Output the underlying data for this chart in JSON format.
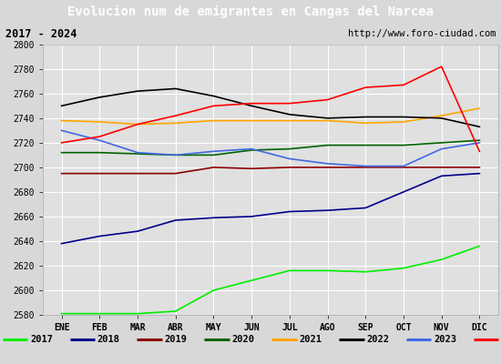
{
  "title": "Evolucion num de emigrantes en Cangas del Narcea",
  "subtitle_left": "2017 - 2024",
  "subtitle_right": "http://www.foro-ciudad.com",
  "months": [
    "ENE",
    "FEB",
    "MAR",
    "ABR",
    "MAY",
    "JUN",
    "JUL",
    "AGO",
    "SEP",
    "OCT",
    "NOV",
    "DIC"
  ],
  "ylim": [
    2580,
    2800
  ],
  "yticks": [
    2580,
    2600,
    2620,
    2640,
    2660,
    2680,
    2700,
    2720,
    2740,
    2760,
    2780,
    2800
  ],
  "series": {
    "2017": {
      "color": "#00ee00",
      "linewidth": 1.2,
      "data": [
        2581,
        2581,
        2581,
        2583,
        2600,
        2608,
        2616,
        2616,
        2615,
        2618,
        2625,
        2636
      ]
    },
    "2018": {
      "color": "#00008b",
      "linewidth": 1.2,
      "data": [
        2638,
        2644,
        2648,
        2657,
        2659,
        2660,
        2664,
        2665,
        2667,
        2680,
        2693,
        2695
      ]
    },
    "2019": {
      "color": "#8b0000",
      "linewidth": 1.2,
      "data": [
        2695,
        2695,
        2695,
        2695,
        2700,
        2699,
        2700,
        2700,
        2700,
        2700,
        2700,
        2700
      ]
    },
    "2020": {
      "color": "#006400",
      "linewidth": 1.2,
      "data": [
        2712,
        2712,
        2711,
        2710,
        2710,
        2714,
        2715,
        2718,
        2718,
        2718,
        2720,
        2722
      ]
    },
    "2021": {
      "color": "#ffa500",
      "linewidth": 1.2,
      "data": [
        2738,
        2737,
        2735,
        2736,
        2738,
        2738,
        2738,
        2738,
        2736,
        2737,
        2742,
        2748
      ]
    },
    "2022": {
      "color": "#000000",
      "linewidth": 1.2,
      "data": [
        2750,
        2757,
        2762,
        2764,
        2758,
        2750,
        2743,
        2740,
        2741,
        2741,
        2740,
        2733
      ]
    },
    "2023": {
      "color": "#4169e1",
      "linewidth": 1.2,
      "data": [
        2730,
        2722,
        2712,
        2710,
        2713,
        2715,
        2707,
        2703,
        2701,
        2701,
        2715,
        2720
      ]
    },
    "2024": {
      "color": "#ff0000",
      "linewidth": 1.2,
      "data": [
        2720,
        2725,
        2735,
        2742,
        2750,
        2752,
        2752,
        2755,
        2765,
        2767,
        2782,
        2713
      ]
    }
  },
  "title_bg_color": "#5b9bd5",
  "title_font_color": "#ffffff",
  "subtitle_bg_color": "#e8e8e8",
  "plot_bg_color": "#e0e0e0",
  "grid_color": "#ffffff",
  "legend_bg_color": "#f5f5f5",
  "fig_bg_color": "#d8d8d8"
}
